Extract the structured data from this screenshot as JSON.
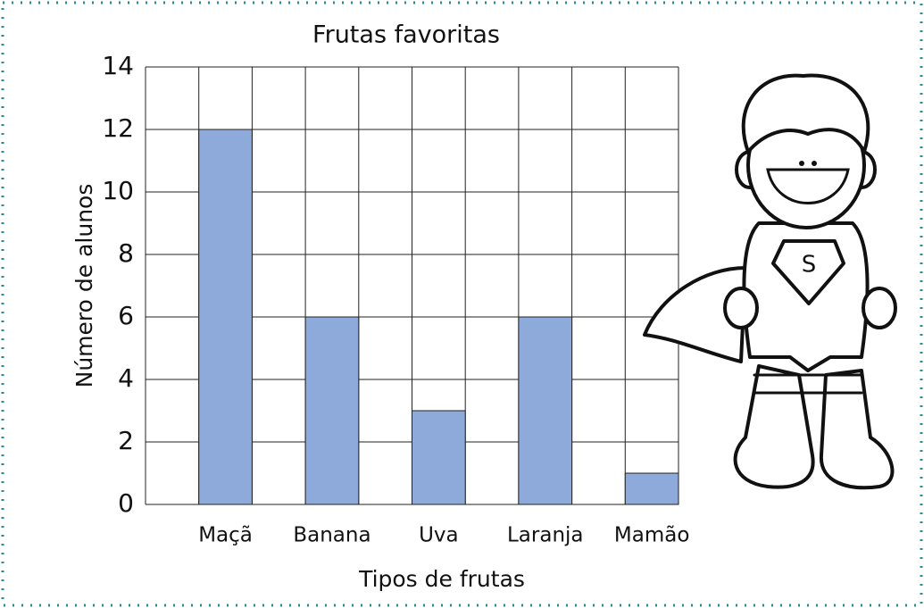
{
  "chart_data": {
    "type": "bar",
    "title": "Frutas favoritas",
    "x_label": "Tipos de frutas",
    "y_label": "Número de alunos",
    "categories": [
      "Maçã",
      "Banana",
      "Uva",
      "Laranja",
      "Mamão"
    ],
    "values": [
      12,
      6,
      3,
      6,
      1
    ],
    "color": "#8eaadb",
    "ylim": [
      0,
      14
    ],
    "yticks": [
      0,
      2,
      4,
      6,
      8,
      10,
      12,
      14
    ],
    "grid": true
  }
}
